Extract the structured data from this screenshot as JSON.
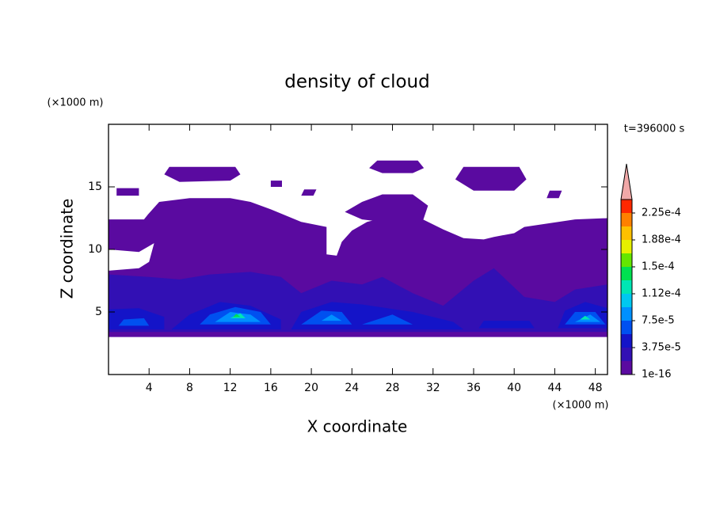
{
  "chart_data": {
    "type": "contour",
    "title": "density of cloud",
    "xlabel": "X coordinate",
    "ylabel": "Z coordinate",
    "x_unit": "(×1000 m)",
    "y_unit": "(×1000 m)",
    "time_label": "t=396000 s",
    "xlim": [
      0,
      49.2
    ],
    "ylim": [
      0,
      20
    ],
    "xticks": [
      4,
      8,
      12,
      16,
      20,
      24,
      28,
      32,
      36,
      40,
      44,
      48
    ],
    "yticks": [
      5,
      10,
      15
    ],
    "colorbar": {
      "clim": [
        1e-16,
        0.00024375
      ],
      "colors": [
        "#5a0aa0",
        "#3210b4",
        "#1414c8",
        "#0050f0",
        "#0090ff",
        "#00c8f0",
        "#00e6b4",
        "#00e050",
        "#64e600",
        "#e6f000",
        "#ffc000",
        "#ff8000",
        "#ff2800"
      ],
      "extend_color": "#f0a8a8",
      "ticks": [
        1e-16,
        {
          "value": 3.75e-05,
          "label": "3.75e-5"
        },
        {
          "value": 7.5e-05,
          "label": "7.5e-5"
        },
        {
          "value": 0.0001125,
          "label": "1.12e-4"
        },
        {
          "value": 0.00015,
          "label": "1.5e-4"
        },
        {
          "value": 0.0001875,
          "label": "1.88e-4"
        },
        {
          "value": 0.000225,
          "label": "2.25e-4"
        }
      ]
    },
    "regions": [
      {
        "value": 1e-16,
        "x": [
          0,
          49.2,
          49.2,
          46,
          41,
          40,
          38,
          37,
          35,
          33,
          31,
          29,
          27,
          25.5,
          24,
          23,
          22.5,
          21.5,
          21.5,
          19,
          16,
          14,
          12,
          8,
          5,
          3.9,
          3.5,
          0,
          0,
          3,
          4.5,
          4,
          3,
          0
        ],
        "z": [
          3.0,
          3.0,
          12.5,
          12.4,
          11.8,
          11.3,
          11.0,
          10.8,
          10.9,
          11.6,
          12.4,
          12.6,
          12.5,
          12.2,
          11.5,
          10.6,
          9.5,
          9.6,
          11.8,
          12.2,
          13.2,
          13.8,
          14.1,
          14.1,
          13.8,
          12.8,
          12.4,
          12.4,
          10.0,
          9.8,
          10.5,
          9.0,
          8.5,
          8.3
        ]
      },
      {
        "value": 1e-16,
        "x": [
          5.5,
          6,
          12.5,
          13,
          12,
          7
        ],
        "z": [
          16.0,
          16.6,
          16.6,
          16.0,
          15.5,
          15.4
        ]
      },
      {
        "value": 1e-16,
        "x": [
          0.8,
          0.8,
          3,
          3
        ],
        "z": [
          14.3,
          14.9,
          14.9,
          14.3
        ]
      },
      {
        "value": 1e-16,
        "x": [
          16,
          16,
          17.1,
          17.1
        ],
        "z": [
          15.0,
          15.5,
          15.5,
          15.0
        ]
      },
      {
        "value": 1e-16,
        "x": [
          19,
          19.3,
          20.5,
          20.2
        ],
        "z": [
          14.3,
          14.8,
          14.8,
          14.3
        ]
      },
      {
        "value": 1e-16,
        "x": [
          25.7,
          26.5,
          30.5,
          31.1,
          30,
          27
        ],
        "z": [
          16.5,
          17.1,
          17.1,
          16.5,
          16.1,
          16.1
        ]
      },
      {
        "value": 1e-16,
        "x": [
          23.3,
          25,
          27,
          30,
          31.5,
          31,
          28,
          25
        ],
        "z": [
          13.0,
          13.8,
          14.4,
          14.4,
          13.5,
          12.3,
          12.1,
          12.4
        ]
      },
      {
        "value": 1e-16,
        "x": [
          34.2,
          35,
          40.5,
          41.2,
          40,
          36
        ],
        "z": [
          15.6,
          16.6,
          16.6,
          15.6,
          14.7,
          14.7
        ]
      },
      {
        "value": 1e-16,
        "x": [
          43.2,
          43.5,
          44.7,
          44.4
        ],
        "z": [
          14.1,
          14.7,
          14.7,
          14.1
        ]
      },
      {
        "value": 1.875e-05,
        "x": [
          0,
          49.2,
          49.2,
          46,
          44,
          41,
          38,
          36,
          33,
          30,
          27,
          25,
          22,
          19,
          17,
          14,
          10,
          7,
          4,
          0
        ],
        "z": [
          3.4,
          3.4,
          7.2,
          6.8,
          5.8,
          6.2,
          8.5,
          7.5,
          5.5,
          6.5,
          7.8,
          7.2,
          7.5,
          6.5,
          7.8,
          8.2,
          8.0,
          7.6,
          7.8,
          8.0
        ]
      },
      {
        "value": 3.75e-05,
        "x": [
          0,
          5.5,
          5.5,
          3,
          0
        ],
        "z": [
          3.6,
          3.6,
          4.6,
          5.3,
          5.2
        ]
      },
      {
        "value": 3.75e-05,
        "x": [
          6.2,
          17,
          17,
          14,
          11,
          8
        ],
        "z": [
          3.6,
          3.6,
          4.4,
          5.5,
          5.8,
          4.8
        ]
      },
      {
        "value": 3.75e-05,
        "x": [
          18,
          35,
          34,
          30,
          25,
          22,
          19
        ],
        "z": [
          3.6,
          3.6,
          4.2,
          5.0,
          5.6,
          5.8,
          5.0
        ]
      },
      {
        "value": 3.75e-05,
        "x": [
          36.5,
          42,
          41.5,
          37
        ],
        "z": [
          3.7,
          3.7,
          4.3,
          4.3
        ]
      },
      {
        "value": 3.75e-05,
        "x": [
          44.3,
          49.2,
          49.2,
          47,
          45
        ],
        "z": [
          3.7,
          3.7,
          5.3,
          5.8,
          5.1
        ]
      },
      {
        "value": 5.625e-05,
        "x": [
          9,
          16,
          15,
          12.5,
          10
        ],
        "z": [
          4.0,
          4.0,
          5.0,
          5.4,
          4.8
        ]
      },
      {
        "value": 5.625e-05,
        "x": [
          19,
          24,
          23,
          21
        ],
        "z": [
          4.0,
          4.0,
          5.0,
          5.1
        ]
      },
      {
        "value": 5.625e-05,
        "x": [
          25,
          30,
          28
        ],
        "z": [
          4.0,
          4.0,
          4.8
        ]
      },
      {
        "value": 5.625e-05,
        "x": [
          45,
          49,
          48,
          46
        ],
        "z": [
          4.0,
          4.0,
          5.0,
          5.0
        ]
      },
      {
        "value": 5.625e-05,
        "x": [
          1,
          4,
          3.5,
          1.5
        ],
        "z": [
          3.9,
          3.9,
          4.5,
          4.4
        ]
      },
      {
        "value": 7.5e-05,
        "x": [
          10.5,
          15,
          14,
          12
        ],
        "z": [
          4.2,
          4.2,
          4.8,
          5.0
        ]
      },
      {
        "value": 7.5e-05,
        "x": [
          46,
          48.5,
          47.5
        ],
        "z": [
          4.2,
          4.2,
          4.8
        ]
      },
      {
        "value": 7.5e-05,
        "x": [
          21,
          23,
          22
        ],
        "z": [
          4.3,
          4.3,
          4.8
        ]
      },
      {
        "value": 0.0001125,
        "x": [
          12,
          13.5,
          13
        ],
        "z": [
          4.5,
          4.5,
          4.9
        ]
      },
      {
        "value": 0.0001125,
        "x": [
          46.5,
          47.5,
          47
        ],
        "z": [
          4.4,
          4.4,
          4.7
        ]
      },
      {
        "value": 0.00013125,
        "x": [
          12.3,
          13,
          12.6
        ],
        "z": [
          4.6,
          4.6,
          4.85
        ]
      }
    ]
  }
}
